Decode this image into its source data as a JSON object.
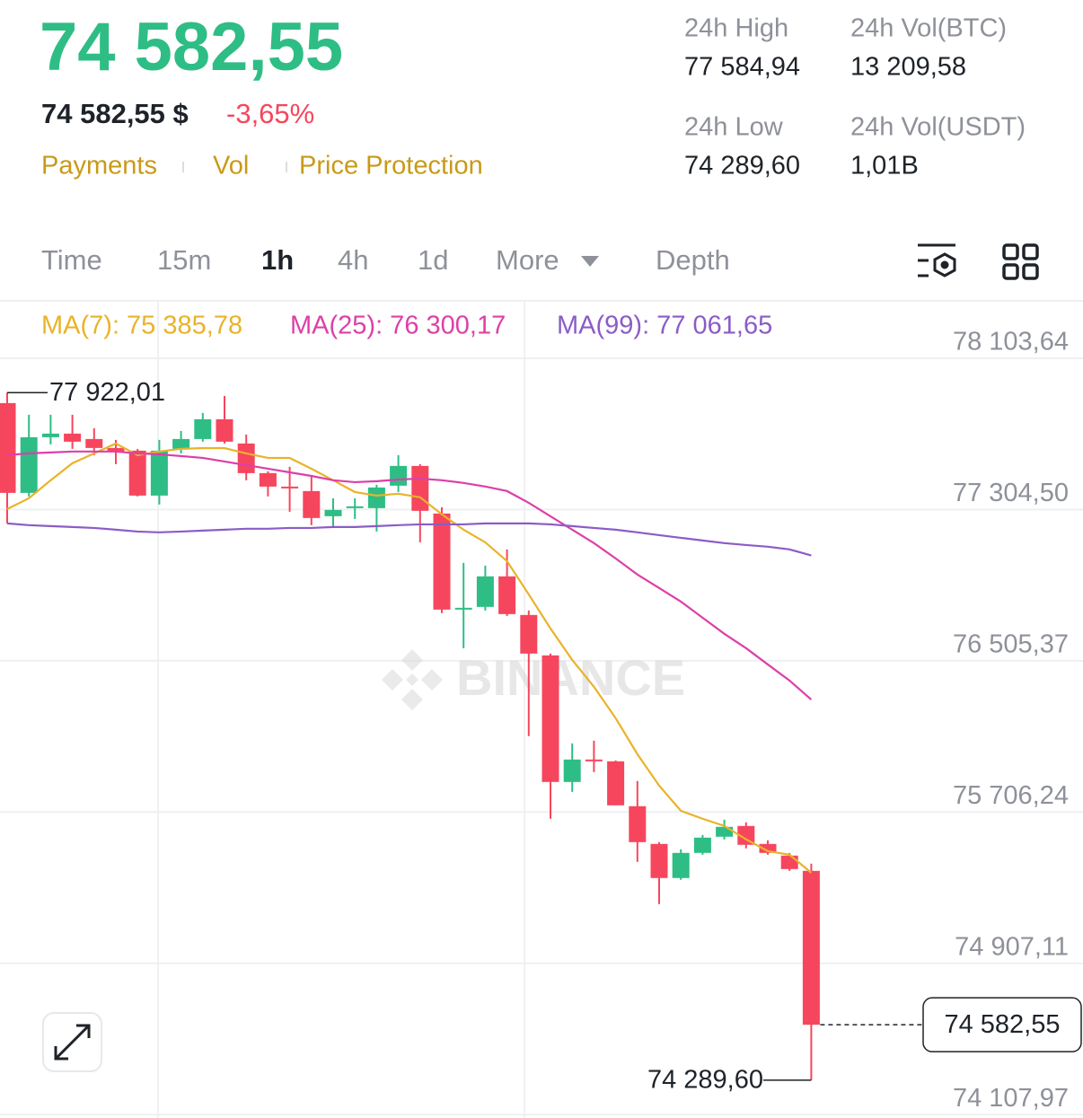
{
  "header": {
    "price": "74 582,55",
    "fiat": "74 582,55 $",
    "change": "-3,65%",
    "links": [
      "Payments",
      "Vol",
      "Price Protection"
    ]
  },
  "stats": [
    {
      "label": "24h High",
      "value": "77 584,94"
    },
    {
      "label": "24h Vol(BTC)",
      "value": "13 209,58"
    },
    {
      "label": "24h Low",
      "value": "74 289,60"
    },
    {
      "label": "24h Vol(USDT)",
      "value": "1,01B"
    }
  ],
  "tabs": [
    "Time",
    "15m",
    "1h",
    "4h",
    "1d",
    "More",
    "Depth"
  ],
  "chart_data": {
    "type": "candlestick",
    "watermark": "BINANCE",
    "up_color": "#2ebd85",
    "down_color": "#f6465d",
    "open": [
      77866.7,
      77392.4,
      77686.5,
      77705.5,
      77677,
      77629.6,
      77615.4,
      77378.2,
      77624.8,
      77677,
      77781.4,
      77653.3,
      77496.8,
      77425.6,
      77401.9,
      77269.1,
      77311.8,
      77311.8,
      77430.4,
      77534.7,
      77283.3,
      76780.6,
      76790.1,
      76951.3,
      76747.4,
      76533.9,
      75865.2,
      75983.8,
      75974.3,
      75737.1,
      75537.9,
      75357.7,
      75490.5,
      75575.9,
      75632.8,
      75537.9,
      75476.3,
      75395.6
    ],
    "high": [
      77922.01,
      77805.1,
      77805.1,
      77805.1,
      77733.9,
      77672.3,
      77624.8,
      77672.3,
      77719.7,
      77814.6,
      77904.7,
      77700.7,
      77506.3,
      77530,
      77482.5,
      77364,
      77364,
      77435.1,
      77591.6,
      77544.2,
      77316.5,
      77022.5,
      77008.2,
      77093.6,
      76771.1,
      76543.4,
      76069.1,
      76083.4,
      75979,
      75869.9,
      75547.4,
      75509.5,
      75585.3,
      75666,
      75651.8,
      75556.9,
      75490.5,
      75433.6
    ],
    "low": [
      77231.2,
      77373.5,
      77648.6,
      77624.8,
      77591.6,
      77544.2,
      77373.5,
      77330.8,
      77601.1,
      77662.8,
      77653.3,
      77458.8,
      77373.5,
      77292.8,
      77221.7,
      77207.5,
      77254.9,
      77188.5,
      77397.2,
      77131.6,
      76756.9,
      76571.9,
      76771.1,
      76742.6,
      76107.1,
      75670.7,
      75813,
      75917.4,
      75741.9,
      75443.1,
      75220.1,
      75348.2,
      75481,
      75561.6,
      75514.2,
      75481,
      75395.6,
      74289.6
    ],
    "close": [
      77392.4,
      77686.5,
      77705.5,
      77662.8,
      77629.6,
      77610.6,
      77378.2,
      77615.4,
      77677,
      77781.4,
      77662.8,
      77496.8,
      77425.6,
      77416.1,
      77259.6,
      77302.3,
      77321.3,
      77420.9,
      77534.7,
      77297.6,
      76775.8,
      76785.3,
      76951.3,
      76752.1,
      76543.4,
      75865.2,
      75983.8,
      75974.3,
      75741.9,
      75547.4,
      75357.7,
      75490.5,
      75571.1,
      75628,
      75533.2,
      75490.5,
      75405.1,
      74582.55
    ],
    "ma": [
      {
        "label": "MA(7): 75 385,78",
        "color": "#e9b32a",
        "values": [
          77307,
          77364,
          77459,
          77549,
          77601,
          77653,
          77592,
          77611,
          77625,
          77629,
          77629,
          77601,
          77577,
          77577,
          77520,
          77459,
          77397,
          77378,
          77388,
          77369,
          77279,
          77198,
          77131,
          77032,
          76856,
          76676,
          76510,
          76368,
          76202,
          76012,
          75846,
          75713,
          75671,
          75633,
          75562,
          75500,
          75481,
          75385.78
        ]
      },
      {
        "label": "MA(25): 76 300,17",
        "color": "#dc40a8",
        "values": [
          77592,
          77601,
          77606,
          77611,
          77611,
          77611,
          77601,
          77596,
          77587,
          77577,
          77558,
          77539,
          77520,
          77501,
          77482,
          77459,
          77449,
          77454,
          77463,
          77468,
          77459,
          77445,
          77426,
          77402,
          77340,
          77269,
          77198,
          77127,
          77046,
          76961,
          76890,
          76818,
          76733,
          76648,
          76572,
          76486,
          76401,
          76300.17
        ]
      },
      {
        "label": "MA(99): 77 061,65",
        "color": "#8b5cc6",
        "values": [
          77231,
          77222,
          77217,
          77212,
          77207,
          77198,
          77188,
          77184,
          77188,
          77193,
          77198,
          77203,
          77203,
          77207,
          77207,
          77212,
          77212,
          77217,
          77222,
          77226,
          77226,
          77226,
          77231,
          77231,
          77231,
          77226,
          77217,
          77207,
          77198,
          77184,
          77169,
          77155,
          77141,
          77127,
          77117,
          77108,
          77094,
          77061.65
        ]
      }
    ],
    "ylim": [
      74090,
      78407
    ],
    "yticks": [
      {
        "value": 78103.64,
        "label": "78 103,64"
      },
      {
        "value": 77304.5,
        "label": "77 304,50"
      },
      {
        "value": 76505.37,
        "label": "76 505,37"
      },
      {
        "value": 75706.24,
        "label": "75 706,24"
      },
      {
        "value": 74907.11,
        "label": "74 907,11"
      },
      {
        "value": 74107.97,
        "label": "74 107,97"
      }
    ],
    "grid": true,
    "high_marker": {
      "value": 77922.01,
      "label": "77 922,01"
    },
    "low_marker": {
      "value": 74289.6,
      "label": "74 289,60"
    },
    "last_price": {
      "value": 74582.55,
      "label": "74 582,55"
    }
  }
}
